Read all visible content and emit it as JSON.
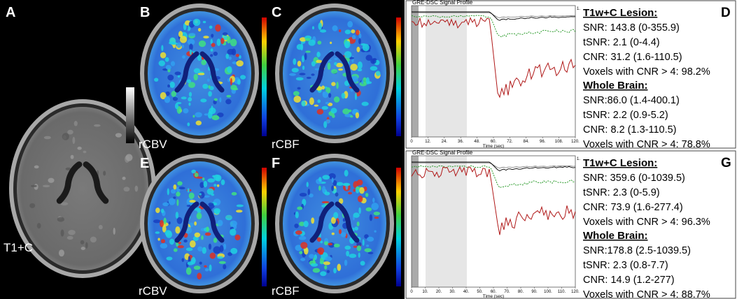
{
  "images": [
    {
      "letter": "A",
      "label": "T1+C"
    },
    {
      "letter": "B",
      "label": "rCBV"
    },
    {
      "letter": "C",
      "label": "rCBF"
    },
    {
      "letter": "E",
      "label": "rCBV"
    },
    {
      "letter": "F",
      "label": "rCBF"
    }
  ],
  "profiles": [
    {
      "title": "GRE-DSC Signal Profile",
      "y_tick": "1.",
      "x_ticks": [
        "0",
        "12.",
        "24.",
        "36.",
        "48.",
        "60.",
        "72.",
        "84.",
        "96.",
        "108.",
        "120."
      ],
      "x_label": "Time (sec)"
    },
    {
      "title": "GRE-DSC Signal Profile",
      "y_tick": "1.",
      "x_ticks": [
        "0",
        "10.",
        "20.",
        "30.",
        "40.",
        "50.",
        "60.",
        "70.",
        "80.",
        "90.",
        "100.",
        "110.",
        "120."
      ],
      "x_label": "Time (sec)"
    }
  ],
  "stats": [
    {
      "letter": "D",
      "groups": [
        {
          "heading": "T1w+C Lesion:",
          "lines": [
            "SNR: 143.8 (0-355.9)",
            "tSNR: 2.1 (0-4.4)",
            "CNR: 31.2 (1.6-110.5)",
            "Voxels with CNR > 4: 98.2%"
          ]
        },
        {
          "heading": "Whole Brain:",
          "lines": [
            "SNR:86.0 (1.4-400.1)",
            "tSNR: 2.2 (0.9-5.2)",
            "CNR: 8.2 (1.3-110.5)",
            "Voxels with CNR > 4: 78.8%"
          ]
        }
      ]
    },
    {
      "letter": "G",
      "groups": [
        {
          "heading": "T1w+C Lesion:",
          "lines": [
            "SNR: 359.6 (0-1039.5)",
            "tSNR: 2.3 (0-5.9)",
            "CNR: 73.9 (1.6-277.4)",
            "Voxels with CNR > 4: 96.3%"
          ]
        },
        {
          "heading": "Whole Brain:",
          "lines": [
            "SNR:178.8 (2.5-1039.5)",
            "tSNR: 2.3 (0.8-7.7)",
            "CNR: 14.9 (1.2-277)",
            "Voxels with CNR > 4: 88.7%"
          ]
        }
      ]
    }
  ]
}
